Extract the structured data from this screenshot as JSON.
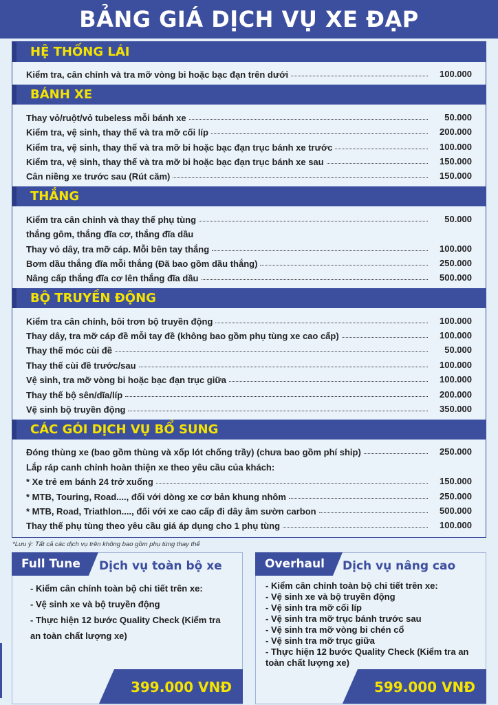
{
  "header": {
    "title": "BẢNG GIÁ DỊCH VỤ XE ĐẠP"
  },
  "sections": [
    {
      "title": "HỆ THỐNG LÁI",
      "items": [
        {
          "name": "Kiểm tra, cân chỉnh và tra mỡ vòng bi hoặc bạc đạn trên dưới",
          "price": "100.000"
        }
      ]
    },
    {
      "title": "BÁNH XE",
      "items": [
        {
          "name": "Thay vỏ/ruột/vỏ tubeless mỗi bánh xe",
          "price": "50.000"
        },
        {
          "name": "Kiểm tra, vệ sinh, thay thế và tra mỡ cối líp",
          "price": "200.000"
        },
        {
          "name": "Kiểm tra, vệ sinh, thay thế và tra mỡ bi hoặc bạc đạn trục bánh xe trước",
          "price": "100.000"
        },
        {
          "name": "Kiểm tra, vệ sinh, thay thế và tra mỡ bi hoặc bạc đạn trục bánh xe sau",
          "price": "150.000"
        },
        {
          "name": "Cân niềng xe trước sau (Rút căm)",
          "price": "150.000"
        }
      ]
    },
    {
      "title": "THẮNG",
      "items": [
        {
          "name": "Kiểm tra cân chỉnh và thay thế phụ tùng",
          "price": "50.000"
        },
        {
          "name": "thắng gôm, thắng đĩa cơ, thắng đĩa dầu"
        },
        {
          "name": "Thay vỏ dây, tra mỡ cáp. Mỗi bên tay thắng",
          "price": "100.000"
        },
        {
          "name": "Bơm dầu thắng đĩa mỗi thắng (Đã bao gồm dầu thắng)",
          "price": "250.000"
        },
        {
          "name": "Nâng cấp thắng đĩa cơ lên thắng đĩa dầu",
          "price": "500.000"
        }
      ]
    },
    {
      "title": "BỘ TRUYỀN ĐỘNG",
      "items": [
        {
          "name": "Kiểm tra cân chỉnh, bôi trơn bộ truyền động",
          "price": "100.000"
        },
        {
          "name": "Thay dây, tra mỡ cáp đề mỗi tay đề (không bao gồm phụ tùng xe cao cấp)",
          "price": "100.000"
        },
        {
          "name": "Thay thế móc cùi đề",
          "price": "50.000"
        },
        {
          "name": "Thay thế cùi đề trước/sau",
          "price": "100.000"
        },
        {
          "name": "Vệ sinh, tra mỡ vòng bi hoặc bạc đạn trục giữa",
          "price": "100.000"
        },
        {
          "name": "Thay thế bộ sên/dĩa/líp",
          "price": "200.000"
        },
        {
          "name": "Vệ sinh bộ truyền động",
          "price": "350.000"
        }
      ]
    },
    {
      "title": "CÁC GÓI DỊCH VỤ BỔ SUNG",
      "items": [
        {
          "name": "Đóng thùng xe (bao gồm thùng và xốp lót chống trầy) (chưa bao gồm phí ship)",
          "price": "250.000"
        },
        {
          "name": "Lắp ráp canh chỉnh hoàn thiện xe theo yêu cầu của khách:"
        },
        {
          "name": "* Xe trẻ em bánh 24 trở xuống",
          "price": "150.000"
        },
        {
          "name": "* MTB, Touring, Road...., đối với dòng xe cơ bản khung nhôm",
          "price": "250.000"
        },
        {
          "name": "* MTB, Road, Triathlon...., đối với xe cao cấp đi dây âm sườn carbon",
          "price": "500.000"
        },
        {
          "name": "Thay thế phụ tùng theo yêu cầu giá áp dụng cho 1 phụ tùng",
          "price": "100.000"
        }
      ]
    }
  ],
  "note": "*Lưu ý: Tất cả các dịch vụ trên không bao gồm phụ tùng thay thế",
  "packages": [
    {
      "badge": "Full Tune",
      "title": "Dịch vụ toàn bộ xe",
      "lines": [
        "- Kiểm cân chỉnh toàn bộ chi tiết trên xe:",
        "- Vệ sinh xe và bộ truyền động",
        "- Thực hiện 12 bước Quality Check (Kiểm tra an toàn chất lượng xe)"
      ],
      "price": "399.000 VNĐ"
    },
    {
      "badge": "Overhaul",
      "title": "Dịch vụ nâng cao",
      "lines": [
        "- Kiểm cân chỉnh toàn bộ chi tiết trên xe:",
        "- Vệ sinh xe và bộ truyền động",
        "- Vệ sinh tra mỡ cối líp",
        "- Vệ sinh tra mỡ trục bánh trước sau",
        "- Vệ sinh tra mỡ vòng bi chén cổ",
        "- Vệ sinh tra mỡ trục giữa",
        "- Thực hiện 12 bước Quality Check (Kiểm tra an toàn chất lượng xe)"
      ],
      "price": "599.000 VNĐ"
    }
  ]
}
